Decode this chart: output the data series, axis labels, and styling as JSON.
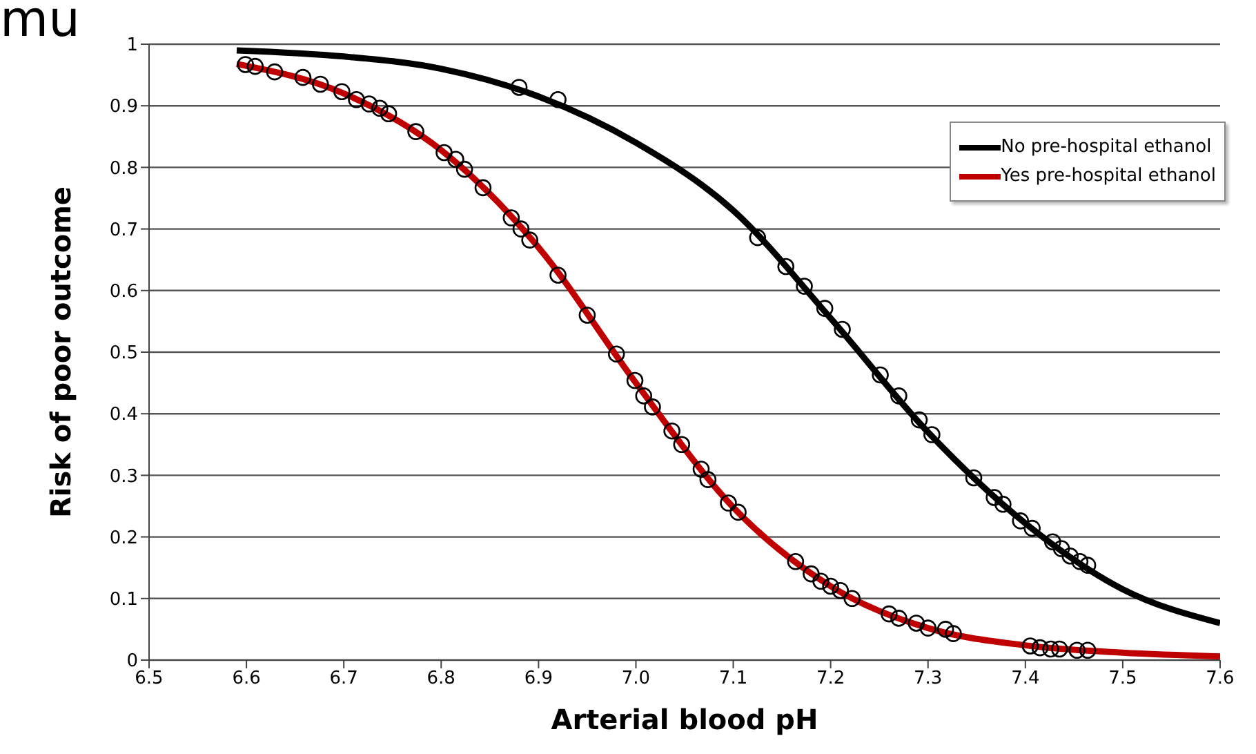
{
  "chart_data": {
    "type": "line",
    "xlabel": "Arterial blood pH",
    "ylabel": "Risk of poor outcome",
    "annotations": [
      "mu"
    ],
    "xlim": [
      6.5,
      7.6
    ],
    "xticks": [
      6.5,
      6.6,
      6.7,
      6.8,
      6.9,
      {
        "value": 7,
        "label": "7.0"
      },
      7.1,
      7.2,
      7.3,
      7.4,
      7.5,
      7.6
    ],
    "ylim": [
      0,
      1
    ],
    "yticks": [
      0,
      0.1,
      0.2,
      0.3,
      0.4,
      0.5,
      0.6,
      0.7,
      0.8,
      0.9,
      1
    ],
    "grid": "y",
    "legend": "top right",
    "series": [
      {
        "name": "No pre-hospital ethanol",
        "marker": "none",
        "color": "#000000",
        "x": [
          6.59,
          6.7,
          6.8,
          6.9,
          7.0,
          7.1,
          7.2,
          7.3,
          7.4,
          7.5,
          7.6
        ],
        "values": [
          0.99,
          0.98,
          0.96,
          0.915,
          0.84,
          0.73,
          0.555,
          0.37,
          0.222,
          0.115,
          0.06
        ]
      },
      {
        "name": "Yes pre-hospital ethanol",
        "marker": "none",
        "color": "#c00000",
        "x": [
          6.59,
          6.7,
          6.8,
          6.9,
          7.0,
          7.1,
          7.2,
          7.3,
          7.4,
          7.5,
          7.6
        ],
        "values": [
          0.968,
          0.92,
          0.828,
          0.67,
          0.45,
          0.248,
          0.12,
          0.052,
          0.024,
          0.012,
          0.006
        ]
      },
      {
        "type": "scatter",
        "marker": "circle",
        "color": "#000000",
        "x": [
          6.88,
          6.92,
          7.125,
          7.154,
          7.173,
          7.194,
          7.212,
          7.251,
          7.27,
          7.291,
          7.304,
          7.347,
          7.368,
          7.377,
          7.395,
          7.407,
          7.428,
          7.437,
          7.446,
          7.456,
          7.464
        ],
        "values": [
          0.93,
          0.91,
          0.686,
          0.639,
          0.607,
          0.571,
          0.537,
          0.463,
          0.429,
          0.39,
          0.366,
          0.296,
          0.264,
          0.253,
          0.226,
          0.214,
          0.192,
          0.181,
          0.169,
          0.16,
          0.154
        ]
      },
      {
        "type": "scatter",
        "marker": "circle",
        "color": "#000000",
        "x": [
          6.599,
          6.609,
          6.629,
          6.658,
          6.676,
          6.698,
          6.713,
          6.726,
          6.737,
          6.746,
          6.774,
          6.803,
          6.815,
          6.824,
          6.843,
          6.872,
          6.882,
          6.891,
          6.92,
          6.95,
          6.98,
          6.999,
          7.008,
          7.017,
          7.037,
          7.047,
          7.067,
          7.074,
          7.095,
          7.105,
          7.164,
          7.18,
          7.19,
          7.2,
          7.21,
          7.222,
          7.26,
          7.27,
          7.288,
          7.3,
          7.318,
          7.326,
          7.405,
          7.415,
          7.426,
          7.435,
          7.453,
          7.464
        ],
        "values": [
          0.967,
          0.964,
          0.955,
          0.946,
          0.935,
          0.923,
          0.91,
          0.903,
          0.896,
          0.887,
          0.858,
          0.824,
          0.813,
          0.797,
          0.767,
          0.718,
          0.7,
          0.682,
          0.625,
          0.56,
          0.497,
          0.454,
          0.429,
          0.411,
          0.372,
          0.35,
          0.31,
          0.293,
          0.255,
          0.24,
          0.16,
          0.14,
          0.128,
          0.12,
          0.113,
          0.1,
          0.075,
          0.068,
          0.06,
          0.052,
          0.05,
          0.043,
          0.023,
          0.02,
          0.018,
          0.018,
          0.016,
          0.016
        ]
      }
    ]
  }
}
